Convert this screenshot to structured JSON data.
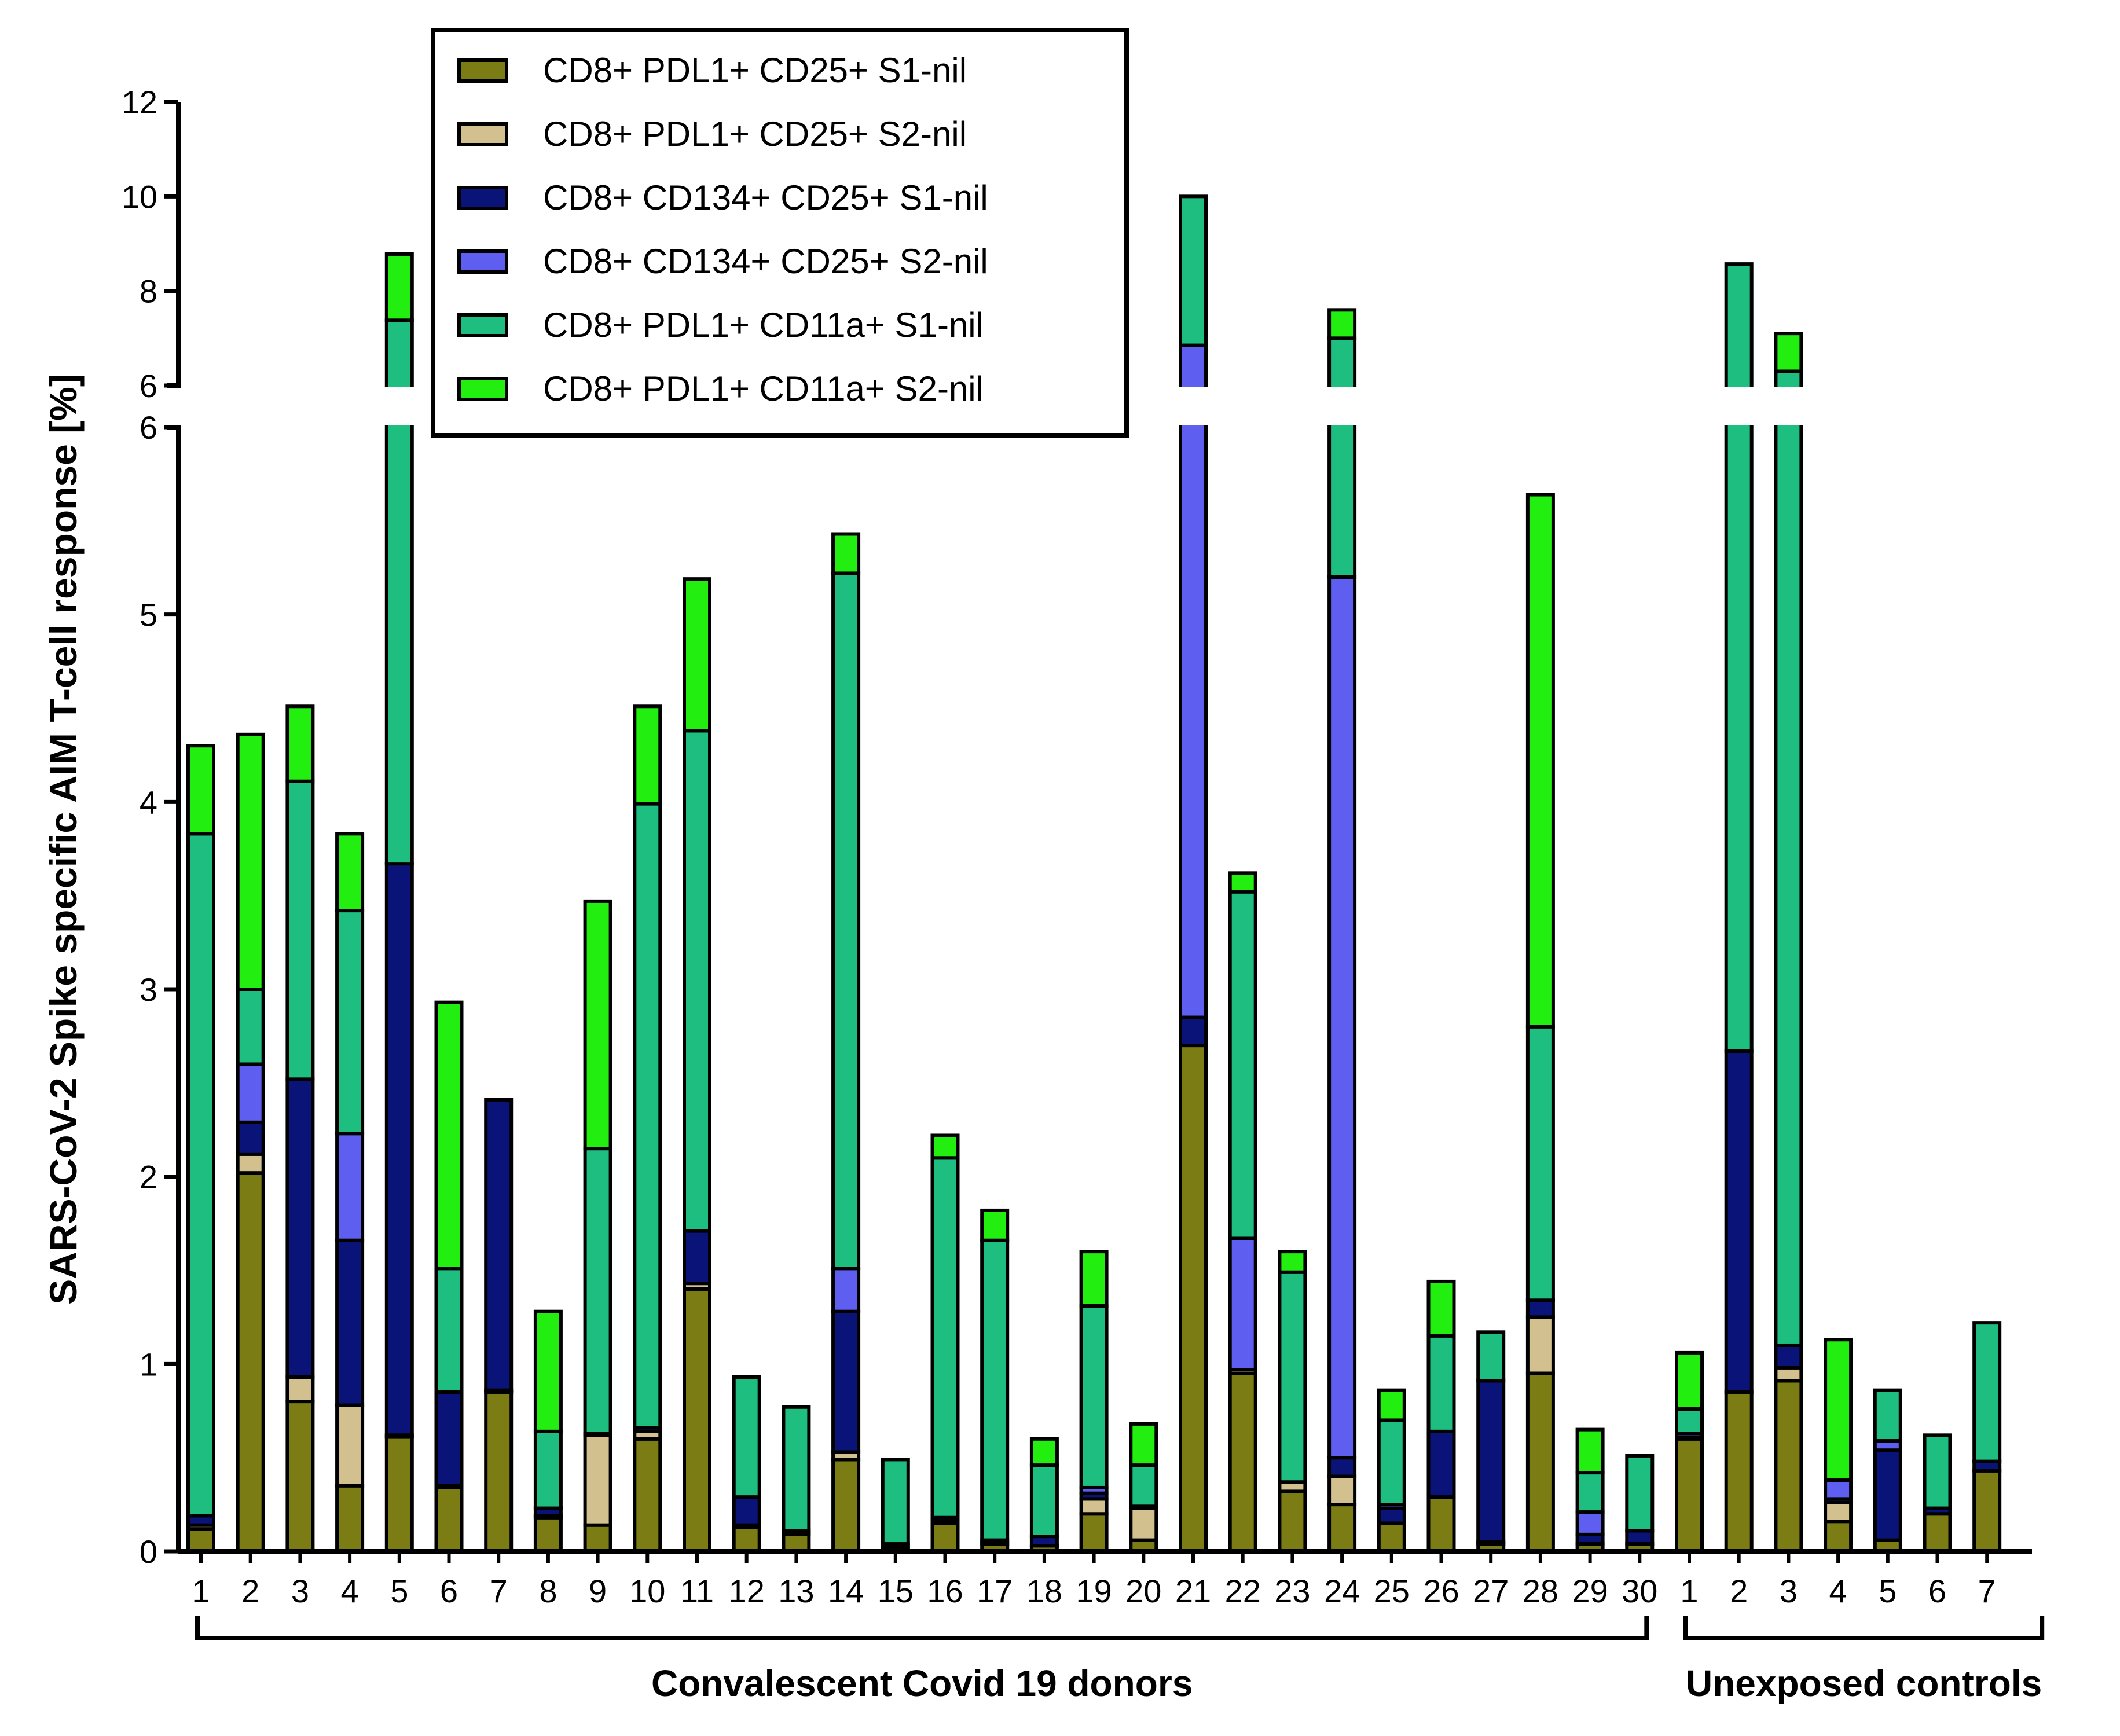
{
  "chart_data": {
    "type": "bar",
    "stacked": true,
    "title": "",
    "ylabel": "SARS-CoV-2 Spike specific AIM T-cell response [%]",
    "xlabel": "",
    "y_axis": {
      "broken": true,
      "lower_range": [
        0,
        6
      ],
      "upper_range": [
        6,
        12
      ],
      "lower_ticks": [
        "0",
        "1",
        "2",
        "3",
        "4",
        "5",
        "6"
      ],
      "upper_ticks": [
        "6",
        "8",
        "10",
        "12"
      ]
    },
    "groups": [
      {
        "label": "Convalescent Covid 19 donors",
        "count": 30
      },
      {
        "label": "Unexposed controls",
        "count": 7
      }
    ],
    "categories": [
      "1",
      "2",
      "3",
      "4",
      "5",
      "6",
      "7",
      "8",
      "9",
      "10",
      "11",
      "12",
      "13",
      "14",
      "15",
      "16",
      "17",
      "18",
      "19",
      "20",
      "21",
      "22",
      "23",
      "24",
      "25",
      "26",
      "27",
      "28",
      "29",
      "30",
      "1",
      "2",
      "3",
      "4",
      "5",
      "6",
      "7"
    ],
    "series": [
      {
        "name": "CD8+ PDL1+ CD25+ S1-nil",
        "color": "#7c7c14",
        "values": [
          0.12,
          2.02,
          0.8,
          0.35,
          0.61,
          0.34,
          0.85,
          0.18,
          0.14,
          0.6,
          1.4,
          0.13,
          0.09,
          0.49,
          0.02,
          0.15,
          0.04,
          0.03,
          0.2,
          0.06,
          2.7,
          0.95,
          0.32,
          0.25,
          0.15,
          0.29,
          0.04,
          0.95,
          0.04,
          0.04,
          0.6,
          0.85,
          0.91,
          0.16,
          0.06,
          0.2,
          0.43
        ]
      },
      {
        "name": "CD8+ PDL1+ CD25+ S2-nil",
        "color": "#d2c08e",
        "values": [
          0.02,
          0.1,
          0.13,
          0.43,
          0.01,
          0.01,
          0.01,
          0.01,
          0.48,
          0.04,
          0.03,
          0.01,
          0.01,
          0.04,
          0.0,
          0.01,
          0.0,
          0.0,
          0.08,
          0.17,
          0.0,
          0.02,
          0.05,
          0.15,
          0.0,
          0.0,
          0.01,
          0.3,
          0.0,
          0.0,
          0.01,
          0.0,
          0.07,
          0.1,
          0.0,
          0.0,
          0.0
        ]
      },
      {
        "name": "CD8+ CD134+ CD25+ S1-nil",
        "color": "#0a1478",
        "values": [
          0.05,
          0.17,
          1.59,
          0.88,
          3.05,
          0.5,
          1.55,
          0.04,
          0.01,
          0.02,
          0.28,
          0.15,
          0.01,
          0.75,
          0.02,
          0.02,
          0.02,
          0.05,
          0.03,
          0.01,
          0.15,
          0.0,
          0.0,
          0.1,
          0.08,
          0.35,
          0.86,
          0.09,
          0.05,
          0.07,
          0.0,
          1.82,
          0.12,
          0.02,
          0.48,
          0.03,
          0.05
        ]
      },
      {
        "name": "CD8+ CD134+ CD25+ S2-nil",
        "color": "#5e5ef0",
        "values": [
          0.0,
          0.31,
          0.0,
          0.57,
          0.0,
          0.0,
          0.0,
          0.0,
          0.0,
          0.0,
          0.0,
          0.0,
          0.0,
          0.23,
          0.0,
          0.0,
          0.0,
          0.0,
          0.03,
          0.0,
          4.0,
          0.7,
          0.0,
          4.7,
          0.02,
          0.0,
          0.0,
          0.0,
          0.12,
          0.0,
          0.02,
          0.0,
          0.0,
          0.1,
          0.05,
          0.0,
          0.0
        ]
      },
      {
        "name": "CD8+ PDL1+ CD11a+ S1-nil",
        "color": "#1ebd80",
        "values": [
          3.64,
          0.4,
          1.59,
          1.19,
          3.71,
          0.66,
          0.0,
          0.41,
          1.52,
          3.33,
          2.67,
          0.64,
          0.66,
          3.71,
          0.45,
          1.92,
          1.6,
          0.38,
          0.97,
          0.22,
          3.15,
          1.85,
          1.12,
          1.8,
          0.45,
          0.51,
          0.26,
          1.46,
          0.21,
          0.4,
          0.13,
          5.9,
          5.2,
          0.0,
          0.27,
          0.39,
          0.74
        ]
      },
      {
        "name": "CD8+ PDL1+ CD11a+ S2-nil",
        "color": "#22ef10",
        "values": [
          0.47,
          1.36,
          0.4,
          0.41,
          1.4,
          1.42,
          0.0,
          0.64,
          1.32,
          0.52,
          0.81,
          0.0,
          0.0,
          0.21,
          0.0,
          0.12,
          0.16,
          0.14,
          0.29,
          0.22,
          0.0,
          0.1,
          0.11,
          0.6,
          0.16,
          0.29,
          0.0,
          2.84,
          0.23,
          0.0,
          0.3,
          0.0,
          0.8,
          0.75,
          0.0,
          0.0,
          0.0
        ]
      }
    ],
    "legend_position": "top-center",
    "grid": false
  }
}
